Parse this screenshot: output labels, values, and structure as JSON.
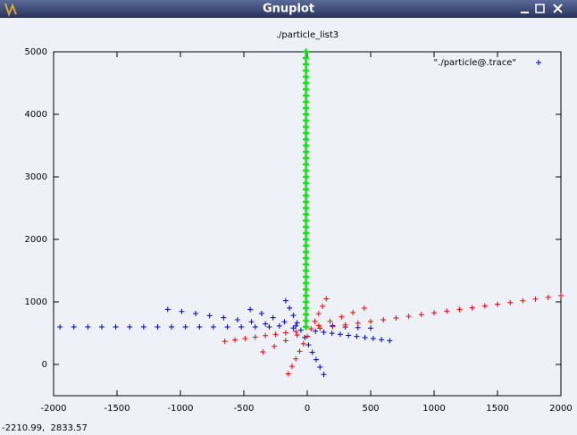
{
  "window": {
    "title": "Gnuplot"
  },
  "status": "-2210.99,  2833.57",
  "chart_data": {
    "type": "scatter",
    "title": "./particle_list3",
    "xlim": [
      -2000,
      2000
    ],
    "ylim": [
      -500,
      5000
    ],
    "xticks": [
      -2000,
      -1500,
      -1000,
      -500,
      0,
      500,
      1000,
      1500,
      2000
    ],
    "yticks": [
      0,
      1000,
      2000,
      3000,
      4000,
      5000
    ],
    "series": [
      {
        "name": "\"./particle@.trace\"",
        "color": "#0000cc",
        "x": [
          -1950,
          -1840,
          -1730,
          -1620,
          -1510,
          -1400,
          -1290,
          -1180,
          -1070,
          -960,
          -850,
          -740,
          -630,
          -520,
          -410,
          -300,
          -1100,
          -990,
          -880,
          -770,
          -660,
          -550,
          -440,
          -330,
          -220,
          -110,
          65,
          130,
          195,
          260,
          325,
          390,
          455,
          520,
          585,
          650,
          -170,
          -140,
          -110,
          -80,
          -50,
          -20,
          10,
          40,
          70,
          100,
          130,
          -450,
          -360,
          -270,
          -180,
          -90,
          200,
          300,
          400,
          500
        ],
        "values": [
          600,
          600,
          600,
          600,
          600,
          600,
          600,
          600,
          600,
          600,
          600,
          600,
          600,
          600,
          600,
          600,
          880,
          847,
          814,
          781,
          748,
          715,
          682,
          649,
          616,
          583,
          533,
          516,
          499,
          482,
          465,
          448,
          431,
          414,
          397,
          380,
          1020,
          902,
          784,
          666,
          548,
          430,
          312,
          194,
          76,
          -42,
          -160,
          880,
          814,
          748,
          682,
          616,
          620,
          600,
          590,
          580
        ]
      },
      {
        "color": "#ee0000",
        "x": [
          100,
          200,
          300,
          400,
          500,
          600,
          700,
          800,
          900,
          1000,
          1100,
          1200,
          1300,
          1400,
          1500,
          1600,
          1700,
          1800,
          1900,
          2000,
          -650,
          -570,
          -490,
          -410,
          -330,
          -250,
          -170,
          -90,
          150,
          120,
          90,
          60,
          30,
          0,
          -30,
          -60,
          -90,
          -120,
          -150,
          90,
          180,
          270,
          360,
          450,
          -350,
          -260,
          -170,
          -80
        ],
        "values": [
          578,
          605,
          633,
          660,
          688,
          715,
          743,
          770,
          798,
          825,
          853,
          880,
          908,
          935,
          963,
          990,
          1018,
          1045,
          1073,
          1100,
          370,
          392,
          415,
          437,
          460,
          482,
          505,
          527,
          1050,
          930,
          810,
          690,
          570,
          450,
          330,
          210,
          90,
          -30,
          -150,
          620,
          690,
          760,
          830,
          900,
          200,
          290,
          380,
          470
        ]
      },
      {
        "color": "#00ee00",
        "x": [
          -10,
          -10,
          -10,
          -10,
          -10,
          -10,
          -10,
          -10,
          -10,
          -10,
          -10,
          -10,
          -10,
          -10,
          -10,
          -10,
          -10,
          -10,
          -10,
          -10,
          -10,
          -10,
          -10,
          -10,
          -10,
          -10,
          -10,
          -10,
          -10,
          -10,
          -10,
          -10,
          -10,
          -10,
          -10,
          -10,
          -10,
          -10,
          -10,
          -10,
          -10,
          -10,
          -10,
          -10,
          -10
        ],
        "values": [
          600,
          700,
          800,
          900,
          1000,
          1100,
          1200,
          1300,
          1400,
          1500,
          1600,
          1700,
          1800,
          1900,
          2000,
          2100,
          2200,
          2300,
          2400,
          2500,
          2600,
          2700,
          2800,
          2900,
          3000,
          3100,
          3200,
          3300,
          3400,
          3500,
          3600,
          3700,
          3800,
          3900,
          4000,
          4100,
          4200,
          4300,
          4400,
          4500,
          4600,
          4700,
          4800,
          4900,
          5000
        ]
      }
    ]
  }
}
